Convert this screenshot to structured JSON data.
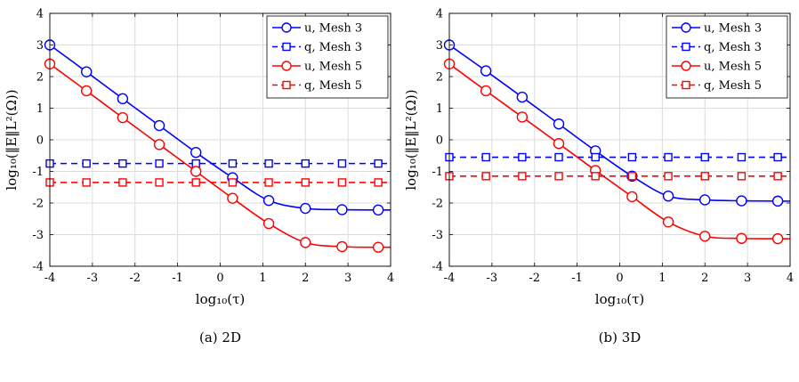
{
  "chart_data": [
    {
      "type": "line",
      "caption": "(a) 2D",
      "xlabel": "log₁₀(τ)",
      "ylabel": "log₁₀(‖E‖L²(Ω))",
      "xlim": [
        -4,
        4
      ],
      "ylim": [
        -4,
        4
      ],
      "xticks": [
        "-4",
        "-3",
        "-2",
        "-1",
        "0",
        "1",
        "2",
        "3",
        "4"
      ],
      "yticks": [
        "-4",
        "-3",
        "-2",
        "-1",
        "0",
        "1",
        "2",
        "3",
        "4"
      ],
      "grid": true,
      "legend_position": "top-right",
      "x": [
        -4,
        -3.14,
        -2.29,
        -1.43,
        -0.57,
        0.29,
        1.14,
        2.0,
        2.86,
        3.71
      ],
      "series": [
        {
          "name": "u, Mesh 3",
          "color": "#0000ff",
          "style": "solid",
          "marker": "circle",
          "values": [
            3.0,
            2.15,
            1.3,
            0.45,
            -0.4,
            -1.2,
            -1.92,
            -2.17,
            -2.21,
            -2.22
          ]
        },
        {
          "name": "q, Mesh 3",
          "color": "#0000ff",
          "style": "dashed",
          "marker": "square",
          "values": [
            -0.75,
            -0.75,
            -0.75,
            -0.75,
            -0.75,
            -0.75,
            -0.75,
            -0.75,
            -0.75,
            -0.75
          ]
        },
        {
          "name": "u, Mesh 5",
          "color": "#ff0000",
          "style": "solid",
          "marker": "circle",
          "values": [
            2.4,
            1.55,
            0.7,
            -0.15,
            -1.0,
            -1.85,
            -2.65,
            -3.25,
            -3.38,
            -3.4
          ]
        },
        {
          "name": "q, Mesh 5",
          "color": "#ff0000",
          "style": "dashed",
          "marker": "square",
          "values": [
            -1.35,
            -1.35,
            -1.35,
            -1.35,
            -1.35,
            -1.35,
            -1.35,
            -1.35,
            -1.35,
            -1.35
          ]
        }
      ]
    },
    {
      "type": "line",
      "caption": "(b) 3D",
      "xlabel": "log₁₀(τ)",
      "ylabel": "log₁₀(‖E‖L²(Ω))",
      "xlim": [
        -4,
        4
      ],
      "ylim": [
        -4,
        4
      ],
      "xticks": [
        "-4",
        "-3",
        "-2",
        "-1",
        "0",
        "1",
        "2",
        "3",
        "4"
      ],
      "yticks": [
        "-4",
        "-3",
        "-2",
        "-1",
        "0",
        "1",
        "2",
        "3",
        "4"
      ],
      "grid": true,
      "legend_position": "top-right",
      "x": [
        -4,
        -3.14,
        -2.29,
        -1.43,
        -0.57,
        0.29,
        1.14,
        2.0,
        2.86,
        3.71
      ],
      "series": [
        {
          "name": "u, Mesh 3",
          "color": "#0000ff",
          "style": "solid",
          "marker": "circle",
          "values": [
            3.0,
            2.18,
            1.35,
            0.5,
            -0.35,
            -1.15,
            -1.78,
            -1.9,
            -1.93,
            -1.94
          ]
        },
        {
          "name": "q, Mesh 3",
          "color": "#0000ff",
          "style": "dashed",
          "marker": "square",
          "values": [
            -0.55,
            -0.55,
            -0.55,
            -0.55,
            -0.55,
            -0.55,
            -0.55,
            -0.55,
            -0.55,
            -0.55
          ]
        },
        {
          "name": "u, Mesh 5",
          "color": "#ff0000",
          "style": "solid",
          "marker": "circle",
          "values": [
            2.4,
            1.55,
            0.72,
            -0.12,
            -0.97,
            -1.8,
            -2.6,
            -3.05,
            -3.12,
            -3.13
          ]
        },
        {
          "name": "q, Mesh 5",
          "color": "#ff0000",
          "style": "dashed",
          "marker": "square",
          "values": [
            -1.15,
            -1.15,
            -1.15,
            -1.15,
            -1.15,
            -1.15,
            -1.15,
            -1.15,
            -1.15,
            -1.15
          ]
        }
      ]
    }
  ]
}
